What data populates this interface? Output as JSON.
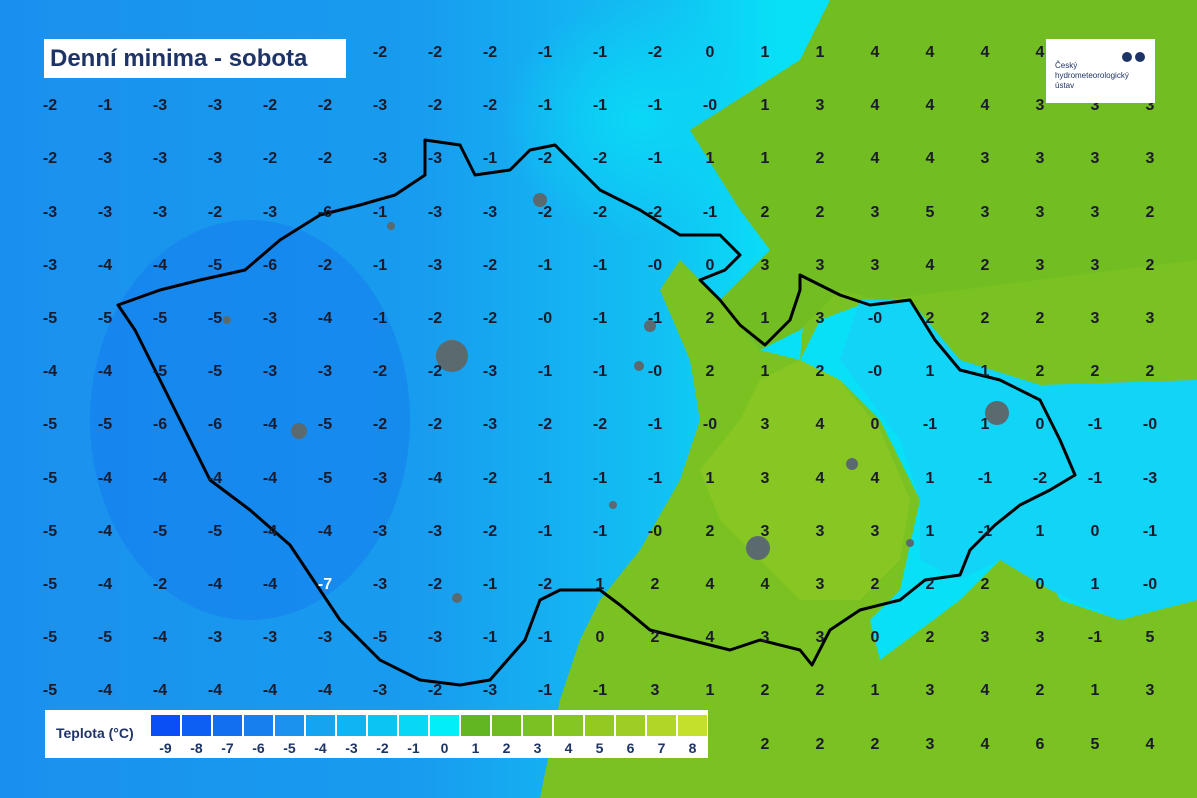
{
  "title": "Denní minima - sobota",
  "logo": {
    "text_lines": [
      "Český",
      "hydrometeorologický",
      "ústav"
    ]
  },
  "legend": {
    "label": "Teplota (°C)",
    "steps": [
      {
        "value": "-9",
        "color": "#0a4ff5"
      },
      {
        "value": "-8",
        "color": "#0c5ff2"
      },
      {
        "value": "-7",
        "color": "#126fef"
      },
      {
        "value": "-6",
        "color": "#1880ee"
      },
      {
        "value": "-5",
        "color": "#1a92ee"
      },
      {
        "value": "-4",
        "color": "#14a4f0"
      },
      {
        "value": "-3",
        "color": "#10b4f2"
      },
      {
        "value": "-2",
        "color": "#0cc4f4"
      },
      {
        "value": "-1",
        "color": "#08d8f6"
      },
      {
        "value": "0",
        "color": "#02eef8"
      },
      {
        "value": "1",
        "color": "#62b622"
      },
      {
        "value": "2",
        "color": "#6ebc22"
      },
      {
        "value": "3",
        "color": "#7ac222"
      },
      {
        "value": "4",
        "color": "#86c622"
      },
      {
        "value": "5",
        "color": "#92ca22"
      },
      {
        "value": "6",
        "color": "#9ece24"
      },
      {
        "value": "7",
        "color": "#b0d628"
      },
      {
        "value": "8",
        "color": "#c4e02a"
      }
    ]
  },
  "grid_values": [
    [
      null,
      null,
      null,
      null,
      null,
      null,
      "-2",
      "-2",
      "-2",
      "-1",
      "-1",
      "-2",
      "0",
      "1",
      "1",
      "4",
      "4",
      "4",
      "4",
      null,
      null
    ],
    [
      "-2",
      "-1",
      "-3",
      "-3",
      "-2",
      "-2",
      "-3",
      "-2",
      "-2",
      "-1",
      "-1",
      "-1",
      "-0",
      "1",
      "3",
      "4",
      "4",
      "4",
      "3",
      "3",
      "3"
    ],
    [
      "-2",
      "-3",
      "-3",
      "-3",
      "-2",
      "-2",
      "-3",
      "-3",
      "-1",
      "-2",
      "-2",
      "-1",
      "1",
      "1",
      "2",
      "4",
      "4",
      "3",
      "3",
      "3",
      "3"
    ],
    [
      "-3",
      "-3",
      "-3",
      "-2",
      "-3",
      "-6",
      "-1",
      "-3",
      "-3",
      "-2",
      "-2",
      "-2",
      "-1",
      "2",
      "2",
      "3",
      "5",
      "3",
      "3",
      "3",
      "2"
    ],
    [
      "-3",
      "-4",
      "-4",
      "-5",
      "-6",
      "-2",
      "-1",
      "-3",
      "-2",
      "-1",
      "-1",
      "-0",
      "0",
      "3",
      "3",
      "3",
      "4",
      "2",
      "3",
      "3",
      "2"
    ],
    [
      "-5",
      "-5",
      "-5",
      "-5",
      "-3",
      "-4",
      "-1",
      "-2",
      "-2",
      "-0",
      "-1",
      "-1",
      "2",
      "1",
      "3",
      "-0",
      "2",
      "2",
      "2",
      "3",
      "3"
    ],
    [
      "-4",
      "-4",
      "-5",
      "-5",
      "-3",
      "-3",
      "-2",
      "-2",
      "-3",
      "-1",
      "-1",
      "-0",
      "2",
      "1",
      "2",
      "-0",
      "1",
      "1",
      "2",
      "2",
      "2"
    ],
    [
      "-5",
      "-5",
      "-6",
      "-6",
      "-4",
      "-5",
      "-2",
      "-2",
      "-3",
      "-2",
      "-2",
      "-1",
      "-0",
      "3",
      "4",
      "0",
      "-1",
      "1",
      "0",
      "-1",
      "-0"
    ],
    [
      "-5",
      "-4",
      "-4",
      "-4",
      "-4",
      "-5",
      "-3",
      "-4",
      "-2",
      "-1",
      "-1",
      "-1",
      "1",
      "3",
      "4",
      "4",
      "1",
      "-1",
      "-2",
      "-1",
      "-3"
    ],
    [
      "-5",
      "-4",
      "-5",
      "-5",
      "-4",
      "-4",
      "-3",
      "-3",
      "-2",
      "-1",
      "-1",
      "-0",
      "2",
      "3",
      "3",
      "3",
      "1",
      "-1",
      "1",
      "0",
      "-1"
    ],
    [
      "-5",
      "-4",
      "-2",
      "-4",
      "-4",
      "-7",
      "-3",
      "-2",
      "-1",
      "-2",
      "1",
      "2",
      "4",
      "4",
      "3",
      "2",
      "2",
      "2",
      "0",
      "1",
      "-0"
    ],
    [
      "-5",
      "-5",
      "-4",
      "-3",
      "-3",
      "-3",
      "-5",
      "-3",
      "-1",
      "-1",
      "0",
      "2",
      "4",
      "3",
      "3",
      "0",
      "2",
      "3",
      "3",
      "-1",
      "5"
    ],
    [
      "-5",
      "-4",
      "-4",
      "-4",
      "-4",
      "-4",
      "-3",
      "-2",
      "-3",
      "-1",
      "-1",
      "3",
      "1",
      "2",
      "2",
      "1",
      "3",
      "4",
      "2",
      "1",
      "3"
    ],
    [
      null,
      null,
      null,
      null,
      null,
      null,
      null,
      null,
      null,
      null,
      null,
      null,
      null,
      "2",
      "2",
      "2",
      "3",
      "4",
      "6",
      "5",
      "4"
    ]
  ],
  "colors": {
    "cold": "#1a92ee",
    "zero": "#02eef8",
    "warm": "#7ac222",
    "border": "#000000",
    "city": "#5a6a6e"
  }
}
